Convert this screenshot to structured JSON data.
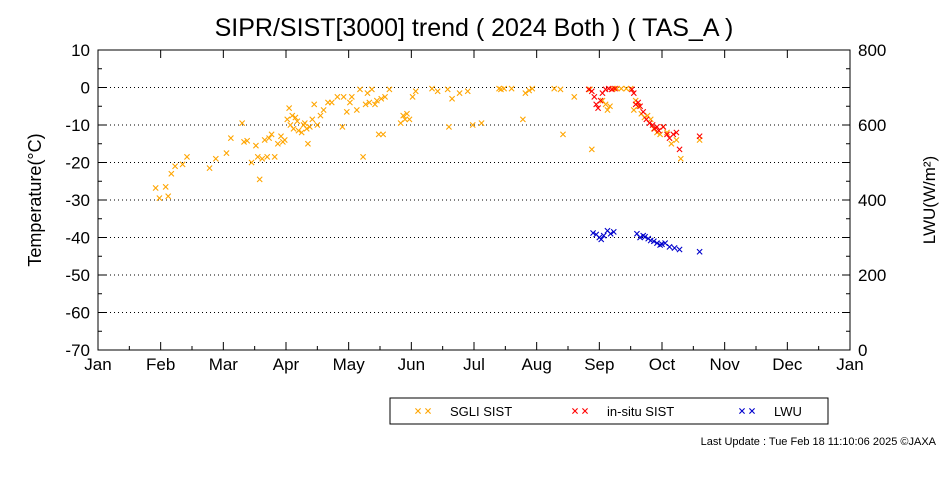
{
  "chart_data": {
    "type": "scatter",
    "title": "SIPR/SIST[3000] trend ( 2024 Both ) ( TAS_A )",
    "ylabel_left": "Temperature(°C)",
    "ylabel_right": "LWU(W/m²)",
    "x_axis": {
      "unit": "month",
      "range": [
        0,
        12
      ],
      "tick_labels": [
        "Jan",
        "Feb",
        "Mar",
        "Apr",
        "May",
        "Jun",
        "Jul",
        "Aug",
        "Sep",
        "Oct",
        "Nov",
        "Dec",
        "Jan"
      ]
    },
    "y_left": {
      "range": [
        -70,
        10
      ],
      "ticks": [
        10,
        0,
        -10,
        -20,
        -30,
        -40,
        -50,
        -60,
        -70
      ]
    },
    "y_right": {
      "range": [
        0,
        800
      ],
      "ticks": [
        800,
        600,
        400,
        200,
        0
      ]
    },
    "grid": "horizontal dotted at every 10°C",
    "legend_position": "bottom-right, below plot",
    "series": [
      {
        "name": "SGLI SIST",
        "color": "#ffa500",
        "axis": "left",
        "marker": "x",
        "points": [
          [
            0.92,
            -26.8
          ],
          [
            0.98,
            -29.5
          ],
          [
            1.08,
            -26.5
          ],
          [
            1.12,
            -29.0
          ],
          [
            1.17,
            -23.0
          ],
          [
            1.23,
            -21.0
          ],
          [
            1.35,
            -20.5
          ],
          [
            1.42,
            -18.5
          ],
          [
            1.78,
            -21.5
          ],
          [
            1.88,
            -19.0
          ],
          [
            2.05,
            -17.5
          ],
          [
            2.12,
            -13.5
          ],
          [
            2.3,
            -9.5
          ],
          [
            2.33,
            -14.5
          ],
          [
            2.38,
            -14.2
          ],
          [
            2.45,
            -20.0
          ],
          [
            2.52,
            -15.5
          ],
          [
            2.55,
            -18.5
          ],
          [
            2.58,
            -24.5
          ],
          [
            2.62,
            -19.0
          ],
          [
            2.66,
            -14.0
          ],
          [
            2.7,
            -18.5
          ],
          [
            2.73,
            -13.5
          ],
          [
            2.77,
            -12.5
          ],
          [
            2.82,
            -18.5
          ],
          [
            2.87,
            -15.0
          ],
          [
            2.92,
            -13.0
          ],
          [
            2.95,
            -14.5
          ],
          [
            2.98,
            -14.0
          ],
          [
            3.02,
            -8.5
          ],
          [
            3.05,
            -5.5
          ],
          [
            3.07,
            -10.0
          ],
          [
            3.1,
            -7.5
          ],
          [
            3.12,
            -11.0
          ],
          [
            3.15,
            -8.0
          ],
          [
            3.18,
            -9.0
          ],
          [
            3.2,
            -11.5
          ],
          [
            3.25,
            -12.0
          ],
          [
            3.28,
            -10.0
          ],
          [
            3.3,
            -9.5
          ],
          [
            3.33,
            -11.0
          ],
          [
            3.35,
            -15.0
          ],
          [
            3.38,
            -10.5
          ],
          [
            3.42,
            -8.5
          ],
          [
            3.45,
            -4.5
          ],
          [
            3.5,
            -10.0
          ],
          [
            3.55,
            -7.5
          ],
          [
            3.6,
            -6.0
          ],
          [
            3.67,
            -4.0
          ],
          [
            3.73,
            -4.0
          ],
          [
            3.82,
            -2.5
          ],
          [
            3.9,
            -10.5
          ],
          [
            3.92,
            -2.5
          ],
          [
            3.97,
            -6.5
          ],
          [
            4.02,
            -4.0
          ],
          [
            4.05,
            -2.5
          ],
          [
            4.13,
            -6.0
          ],
          [
            4.18,
            -0.5
          ],
          [
            4.23,
            -18.5
          ],
          [
            4.27,
            -4.5
          ],
          [
            4.3,
            -1.5
          ],
          [
            4.33,
            -4.0
          ],
          [
            4.37,
            -0.5
          ],
          [
            4.42,
            -4.5
          ],
          [
            4.45,
            -3.5
          ],
          [
            4.48,
            -12.5
          ],
          [
            4.52,
            -3.0
          ],
          [
            4.55,
            -12.5
          ],
          [
            4.58,
            -2.5
          ],
          [
            4.65,
            -0.5
          ],
          [
            4.83,
            -9.5
          ],
          [
            4.87,
            -7.5
          ],
          [
            4.9,
            -8.5
          ],
          [
            4.93,
            -7.0
          ],
          [
            4.97,
            -8.5
          ],
          [
            5.02,
            -2.5
          ],
          [
            5.07,
            -1.0
          ],
          [
            5.33,
            -0.3
          ],
          [
            5.42,
            -1.0
          ],
          [
            5.58,
            -0.5
          ],
          [
            5.6,
            -10.5
          ],
          [
            5.65,
            -3.0
          ],
          [
            5.77,
            -1.5
          ],
          [
            5.9,
            -1.0
          ],
          [
            5.98,
            -10.0
          ],
          [
            6.12,
            -9.5
          ],
          [
            6.4,
            -0.3
          ],
          [
            6.43,
            -0.5
          ],
          [
            6.48,
            -0.3
          ],
          [
            6.6,
            -0.3
          ],
          [
            6.78,
            -8.5
          ],
          [
            6.82,
            -1.5
          ],
          [
            6.88,
            -0.8
          ],
          [
            6.93,
            -0.3
          ],
          [
            7.28,
            -0.3
          ],
          [
            7.38,
            -0.5
          ],
          [
            7.42,
            -12.5
          ],
          [
            7.6,
            -2.5
          ],
          [
            7.85,
            -0.5
          ],
          [
            7.88,
            -16.5
          ],
          [
            8.05,
            -3.5
          ],
          [
            8.1,
            -4.5
          ],
          [
            8.13,
            -6.0
          ],
          [
            8.17,
            -5.0
          ],
          [
            8.22,
            -0.3
          ],
          [
            8.28,
            -0.3
          ],
          [
            8.35,
            -0.3
          ],
          [
            8.43,
            -0.3
          ],
          [
            8.5,
            -0.3
          ],
          [
            8.55,
            -6.0
          ],
          [
            8.58,
            -3.5
          ],
          [
            8.62,
            -5.0
          ],
          [
            8.67,
            -7.0
          ],
          [
            8.72,
            -8.0
          ],
          [
            8.77,
            -7.5
          ],
          [
            8.82,
            -8.5
          ],
          [
            8.87,
            -11.0
          ],
          [
            8.92,
            -12.0
          ],
          [
            8.97,
            -12.5
          ],
          [
            9.02,
            -10.5
          ],
          [
            9.08,
            -12.0
          ],
          [
            9.15,
            -15.0
          ],
          [
            9.23,
            -14.0
          ],
          [
            9.3,
            -19.0
          ],
          [
            9.6,
            -14.0
          ]
        ]
      },
      {
        "name": "in-situ SIST",
        "color": "#ff0000",
        "axis": "left",
        "marker": "x",
        "points": [
          [
            7.83,
            -0.5
          ],
          [
            7.88,
            -1.0
          ],
          [
            7.92,
            -2.5
          ],
          [
            7.95,
            -4.5
          ],
          [
            7.98,
            -5.5
          ],
          [
            8.02,
            -3.5
          ],
          [
            8.05,
            -1.5
          ],
          [
            8.1,
            -0.5
          ],
          [
            8.15,
            -0.3
          ],
          [
            8.2,
            -0.5
          ],
          [
            8.25,
            -0.3
          ],
          [
            8.52,
            -0.5
          ],
          [
            8.55,
            -1.5
          ],
          [
            8.58,
            -4.5
          ],
          [
            8.62,
            -4.0
          ],
          [
            8.65,
            -5.0
          ],
          [
            8.7,
            -6.5
          ],
          [
            8.75,
            -8.5
          ],
          [
            8.8,
            -9.5
          ],
          [
            8.85,
            -10.0
          ],
          [
            8.88,
            -11.0
          ],
          [
            8.92,
            -10.5
          ],
          [
            8.95,
            -11.5
          ],
          [
            9.02,
            -10.5
          ],
          [
            9.08,
            -12.5
          ],
          [
            9.12,
            -13.5
          ],
          [
            9.18,
            -12.5
          ],
          [
            9.23,
            -12.0
          ],
          [
            9.28,
            -16.5
          ],
          [
            9.6,
            -13.0
          ]
        ]
      },
      {
        "name": "LWU",
        "color": "#0000cc",
        "axis": "right",
        "marker": "x",
        "points": [
          [
            7.9,
            312
          ],
          [
            7.95,
            308
          ],
          [
            8.0,
            300
          ],
          [
            8.03,
            295
          ],
          [
            8.07,
            305
          ],
          [
            8.13,
            318
          ],
          [
            8.18,
            310
          ],
          [
            8.23,
            315
          ],
          [
            8.6,
            310
          ],
          [
            8.65,
            300
          ],
          [
            8.7,
            305
          ],
          [
            8.73,
            302
          ],
          [
            8.78,
            297
          ],
          [
            8.82,
            292
          ],
          [
            8.87,
            290
          ],
          [
            8.92,
            285
          ],
          [
            8.97,
            280
          ],
          [
            9.0,
            282
          ],
          [
            9.05,
            285
          ],
          [
            9.12,
            275
          ],
          [
            9.2,
            272
          ],
          [
            9.28,
            268
          ],
          [
            9.6,
            262
          ]
        ]
      }
    ]
  },
  "legend": {
    "items": [
      {
        "label": "SGLI SIST",
        "color": "#ffa500"
      },
      {
        "label": "in-situ SIST",
        "color": "#ff0000"
      },
      {
        "label": "LWU",
        "color": "#0000cc"
      }
    ]
  },
  "footer": {
    "text": "Last Update : Tue Feb 18 11:10:06 2025 ©JAXA"
  }
}
